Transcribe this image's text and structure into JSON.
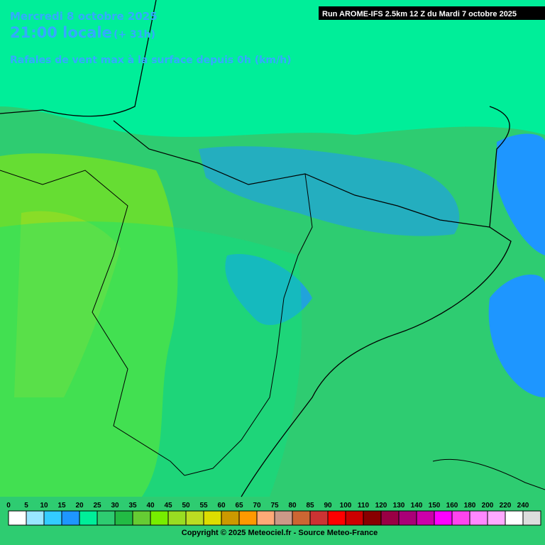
{
  "header": {
    "date": "Mercredi 8 octobre 2025",
    "time": "21:00 locale",
    "lead_time": "(+ 31h)",
    "parameter": "Rafales de vent max à la surface depuis 0h (km/h)",
    "run": "Run AROME-IFS 2.5km 12 Z du Mardi 7 octobre 2025"
  },
  "legend": {
    "items": [
      {
        "label": 0,
        "color": "#ffffff"
      },
      {
        "label": 5,
        "color": "#99e6ff"
      },
      {
        "label": 10,
        "color": "#33ccff"
      },
      {
        "label": 15,
        "color": "#1e96ff"
      },
      {
        "label": 20,
        "color": "#00ee99"
      },
      {
        "label": 25,
        "color": "#2ecc71"
      },
      {
        "label": 30,
        "color": "#22bb44"
      },
      {
        "label": 35,
        "color": "#66cc33"
      },
      {
        "label": 40,
        "color": "#77ee00"
      },
      {
        "label": 45,
        "color": "#99dd22"
      },
      {
        "label": 50,
        "color": "#bbdd22"
      },
      {
        "label": 55,
        "color": "#dddd00"
      },
      {
        "label": 60,
        "color": "#cc9900"
      },
      {
        "label": 65,
        "color": "#ff9900"
      },
      {
        "label": 70,
        "color": "#ffaa77"
      },
      {
        "label": 75,
        "color": "#cc9988"
      },
      {
        "label": 80,
        "color": "#cc6633"
      },
      {
        "label": 85,
        "color": "#cc3333"
      },
      {
        "label": 90,
        "color": "#ff0000"
      },
      {
        "label": 100,
        "color": "#cc0000"
      },
      {
        "label": 110,
        "color": "#880000"
      },
      {
        "label": 120,
        "color": "#990044"
      },
      {
        "label": 130,
        "color": "#aa0077"
      },
      {
        "label": 140,
        "color": "#cc00aa"
      },
      {
        "label": 150,
        "color": "#ff00ff"
      },
      {
        "label": 160,
        "color": "#ff44ee"
      },
      {
        "label": 180,
        "color": "#ff88ff"
      },
      {
        "label": 200,
        "color": "#ffaaff"
      },
      {
        "label": 220,
        "color": "#ffffff"
      },
      {
        "label": 240,
        "color": "#dddddd"
      }
    ]
  },
  "footer": {
    "copyright": "Copyright © 2025 Meteociel.fr - Source Meteo-France"
  }
}
